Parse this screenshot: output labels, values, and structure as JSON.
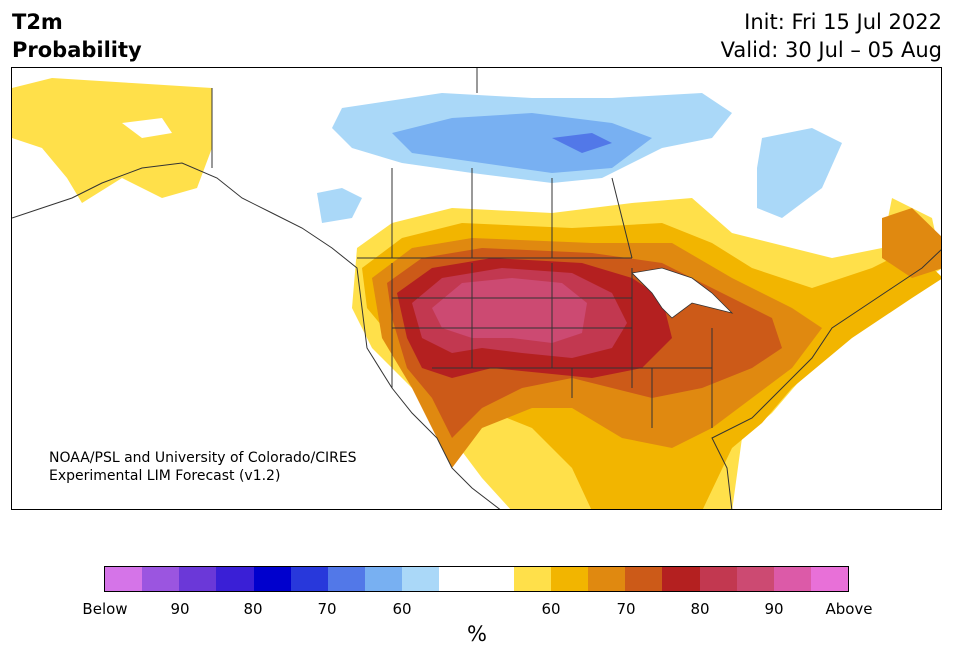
{
  "header": {
    "variable": "T2m",
    "product": "Probability",
    "init": "Init: Fri 15 Jul 2022",
    "valid": "Valid: 30 Jul – 05 Aug"
  },
  "credit": {
    "line1": "NOAA/PSL and University of Colorado/CIRES",
    "line2": "Experimental LIM Forecast (v1.2)"
  },
  "colorbar": {
    "unit": "%",
    "colors": [
      "#d574e8",
      "#9b55e0",
      "#6b38d8",
      "#3a1fd6",
      "#0000cd",
      "#2838db",
      "#5278e8",
      "#78b0f2",
      "#aad8f8",
      "#ffffff",
      "#ffffff",
      "#ffe04a",
      "#f2b500",
      "#e08910",
      "#cc5a18",
      "#b42020",
      "#c23850",
      "#cc4a72",
      "#dc5aa8",
      "#e870d8"
    ],
    "labels": [
      "Below",
      "90",
      "80",
      "70",
      "60",
      "60",
      "70",
      "80",
      "90",
      "Above"
    ]
  },
  "map": {
    "region": "North America",
    "legend_colors": {
      "light_blue": "#aad8f8",
      "mid_blue": "#78b0f2",
      "blue": "#5278e8",
      "yellow": "#ffe04a",
      "gold": "#f2b500",
      "orange": "#e08910",
      "dark_orange": "#cc5a18",
      "red": "#b42020",
      "rose": "#c23850",
      "pink": "#cc4a72"
    }
  }
}
